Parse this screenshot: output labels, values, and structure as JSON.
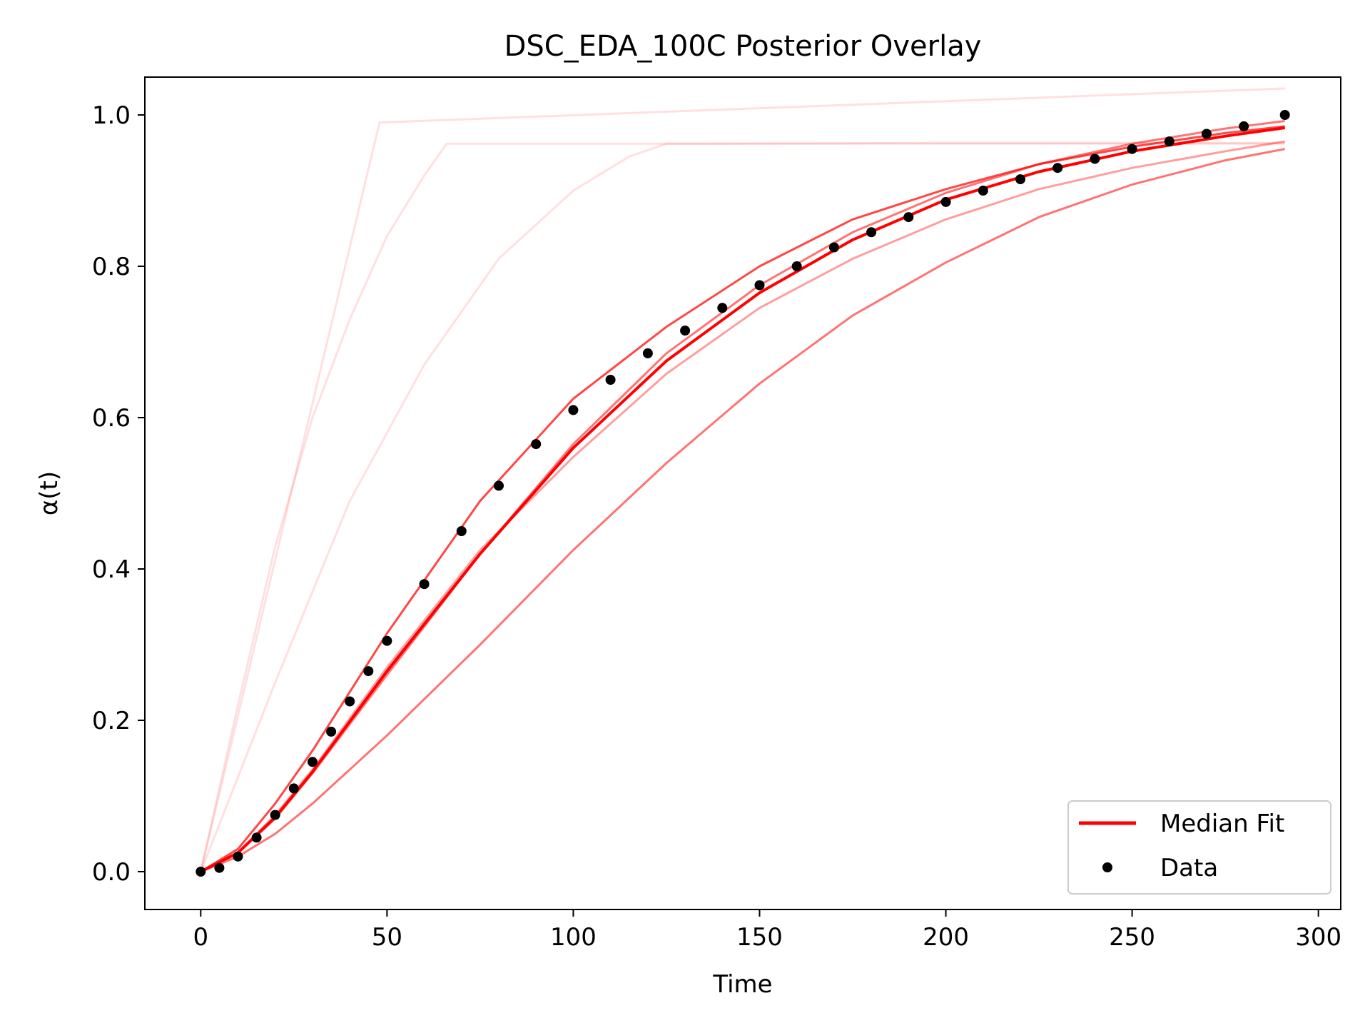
{
  "chart_data": {
    "type": "line",
    "title": "DSC_EDA_100C Posterior Overlay",
    "xlabel": "Time",
    "ylabel": "α(t)",
    "xlim": [
      -15,
      306
    ],
    "ylim": [
      -0.05,
      1.05
    ],
    "xticks": [
      0,
      50,
      100,
      150,
      200,
      250,
      300
    ],
    "yticks": [
      0.0,
      0.2,
      0.4,
      0.6,
      0.8,
      1.0
    ],
    "xtick_labels": [
      "0",
      "50",
      "100",
      "150",
      "200",
      "250",
      "300"
    ],
    "ytick_labels": [
      "0.0",
      "0.2",
      "0.4",
      "0.6",
      "0.8",
      "1.0"
    ],
    "grid": false,
    "legend": {
      "placement": "lower-right",
      "entries": [
        {
          "label": "Median Fit",
          "kind": "line",
          "color": "#ff0000"
        },
        {
          "label": "Data",
          "kind": "point",
          "color": "#000000"
        }
      ]
    },
    "series": [
      {
        "role": "posterior-sample",
        "color": "#ff0000",
        "opacity": 0.12,
        "x": [
          0,
          48,
          291
        ],
        "y": [
          0.0,
          0.99,
          1.035
        ]
      },
      {
        "role": "posterior-sample",
        "color": "#ff0000",
        "opacity": 0.12,
        "x": [
          0,
          10,
          20,
          30,
          40,
          50,
          60,
          66,
          100,
          200,
          291
        ],
        "y": [
          0.0,
          0.22,
          0.43,
          0.6,
          0.73,
          0.84,
          0.92,
          0.962,
          0.962,
          0.962,
          0.962
        ]
      },
      {
        "role": "posterior-sample",
        "color": "#ff0000",
        "opacity": 0.12,
        "x": [
          0,
          20,
          40,
          60,
          80,
          100,
          115,
          125,
          200,
          291
        ],
        "y": [
          0.0,
          0.25,
          0.49,
          0.67,
          0.81,
          0.9,
          0.945,
          0.962,
          0.963,
          0.963
        ]
      },
      {
        "role": "posterior-sample",
        "color": "#ff0000",
        "opacity": 0.72,
        "x": [
          0,
          10,
          20,
          30,
          50,
          75,
          100,
          125,
          150,
          175,
          200,
          225,
          250,
          275,
          291
        ],
        "y": [
          0.0,
          0.03,
          0.09,
          0.16,
          0.315,
          0.49,
          0.625,
          0.72,
          0.8,
          0.862,
          0.902,
          0.935,
          0.958,
          0.976,
          0.985
        ]
      },
      {
        "role": "posterior-sample",
        "color": "#ff0000",
        "opacity": 0.55,
        "x": [
          0,
          10,
          20,
          30,
          50,
          75,
          100,
          125,
          150,
          175,
          200,
          225,
          250,
          275,
          291
        ],
        "y": [
          0.0,
          0.025,
          0.07,
          0.13,
          0.26,
          0.42,
          0.565,
          0.685,
          0.775,
          0.845,
          0.897,
          0.935,
          0.962,
          0.982,
          0.992
        ]
      },
      {
        "role": "posterior-sample",
        "color": "#ff0000",
        "opacity": 0.38,
        "x": [
          0,
          10,
          20,
          30,
          50,
          75,
          100,
          125,
          150,
          175,
          200,
          225,
          250,
          275,
          291
        ],
        "y": [
          0.0,
          0.025,
          0.075,
          0.135,
          0.27,
          0.425,
          0.548,
          0.658,
          0.745,
          0.81,
          0.862,
          0.902,
          0.93,
          0.952,
          0.965
        ]
      },
      {
        "role": "posterior-sample",
        "color": "#ff0000",
        "opacity": 0.55,
        "x": [
          0,
          10,
          20,
          30,
          50,
          75,
          100,
          125,
          150,
          175,
          200,
          225,
          250,
          275,
          291
        ],
        "y": [
          0.0,
          0.02,
          0.05,
          0.09,
          0.18,
          0.3,
          0.425,
          0.54,
          0.645,
          0.735,
          0.805,
          0.865,
          0.908,
          0.94,
          0.955
        ]
      },
      {
        "role": "median",
        "name": "Median Fit",
        "color": "#ff0000",
        "opacity": 1.0,
        "x": [
          0,
          10,
          20,
          30,
          50,
          75,
          100,
          125,
          150,
          175,
          200,
          225,
          250,
          275,
          291
        ],
        "y": [
          0.0,
          0.025,
          0.072,
          0.132,
          0.265,
          0.42,
          0.56,
          0.675,
          0.765,
          0.835,
          0.888,
          0.925,
          0.952,
          0.972,
          0.983
        ]
      }
    ],
    "data_points": {
      "name": "Data",
      "color": "#000000",
      "x": [
        0,
        5,
        10,
        15,
        20,
        25,
        30,
        35,
        40,
        45,
        50,
        60,
        70,
        80,
        90,
        100,
        110,
        120,
        130,
        140,
        150,
        160,
        170,
        180,
        190,
        200,
        210,
        220,
        230,
        240,
        250,
        260,
        270,
        280,
        291
      ],
      "y": [
        0.0,
        0.005,
        0.02,
        0.045,
        0.075,
        0.11,
        0.145,
        0.185,
        0.225,
        0.265,
        0.305,
        0.38,
        0.45,
        0.51,
        0.565,
        0.61,
        0.65,
        0.685,
        0.715,
        0.745,
        0.775,
        0.8,
        0.825,
        0.845,
        0.865,
        0.885,
        0.9,
        0.915,
        0.93,
        0.942,
        0.955,
        0.965,
        0.975,
        0.985,
        1.0
      ]
    }
  }
}
